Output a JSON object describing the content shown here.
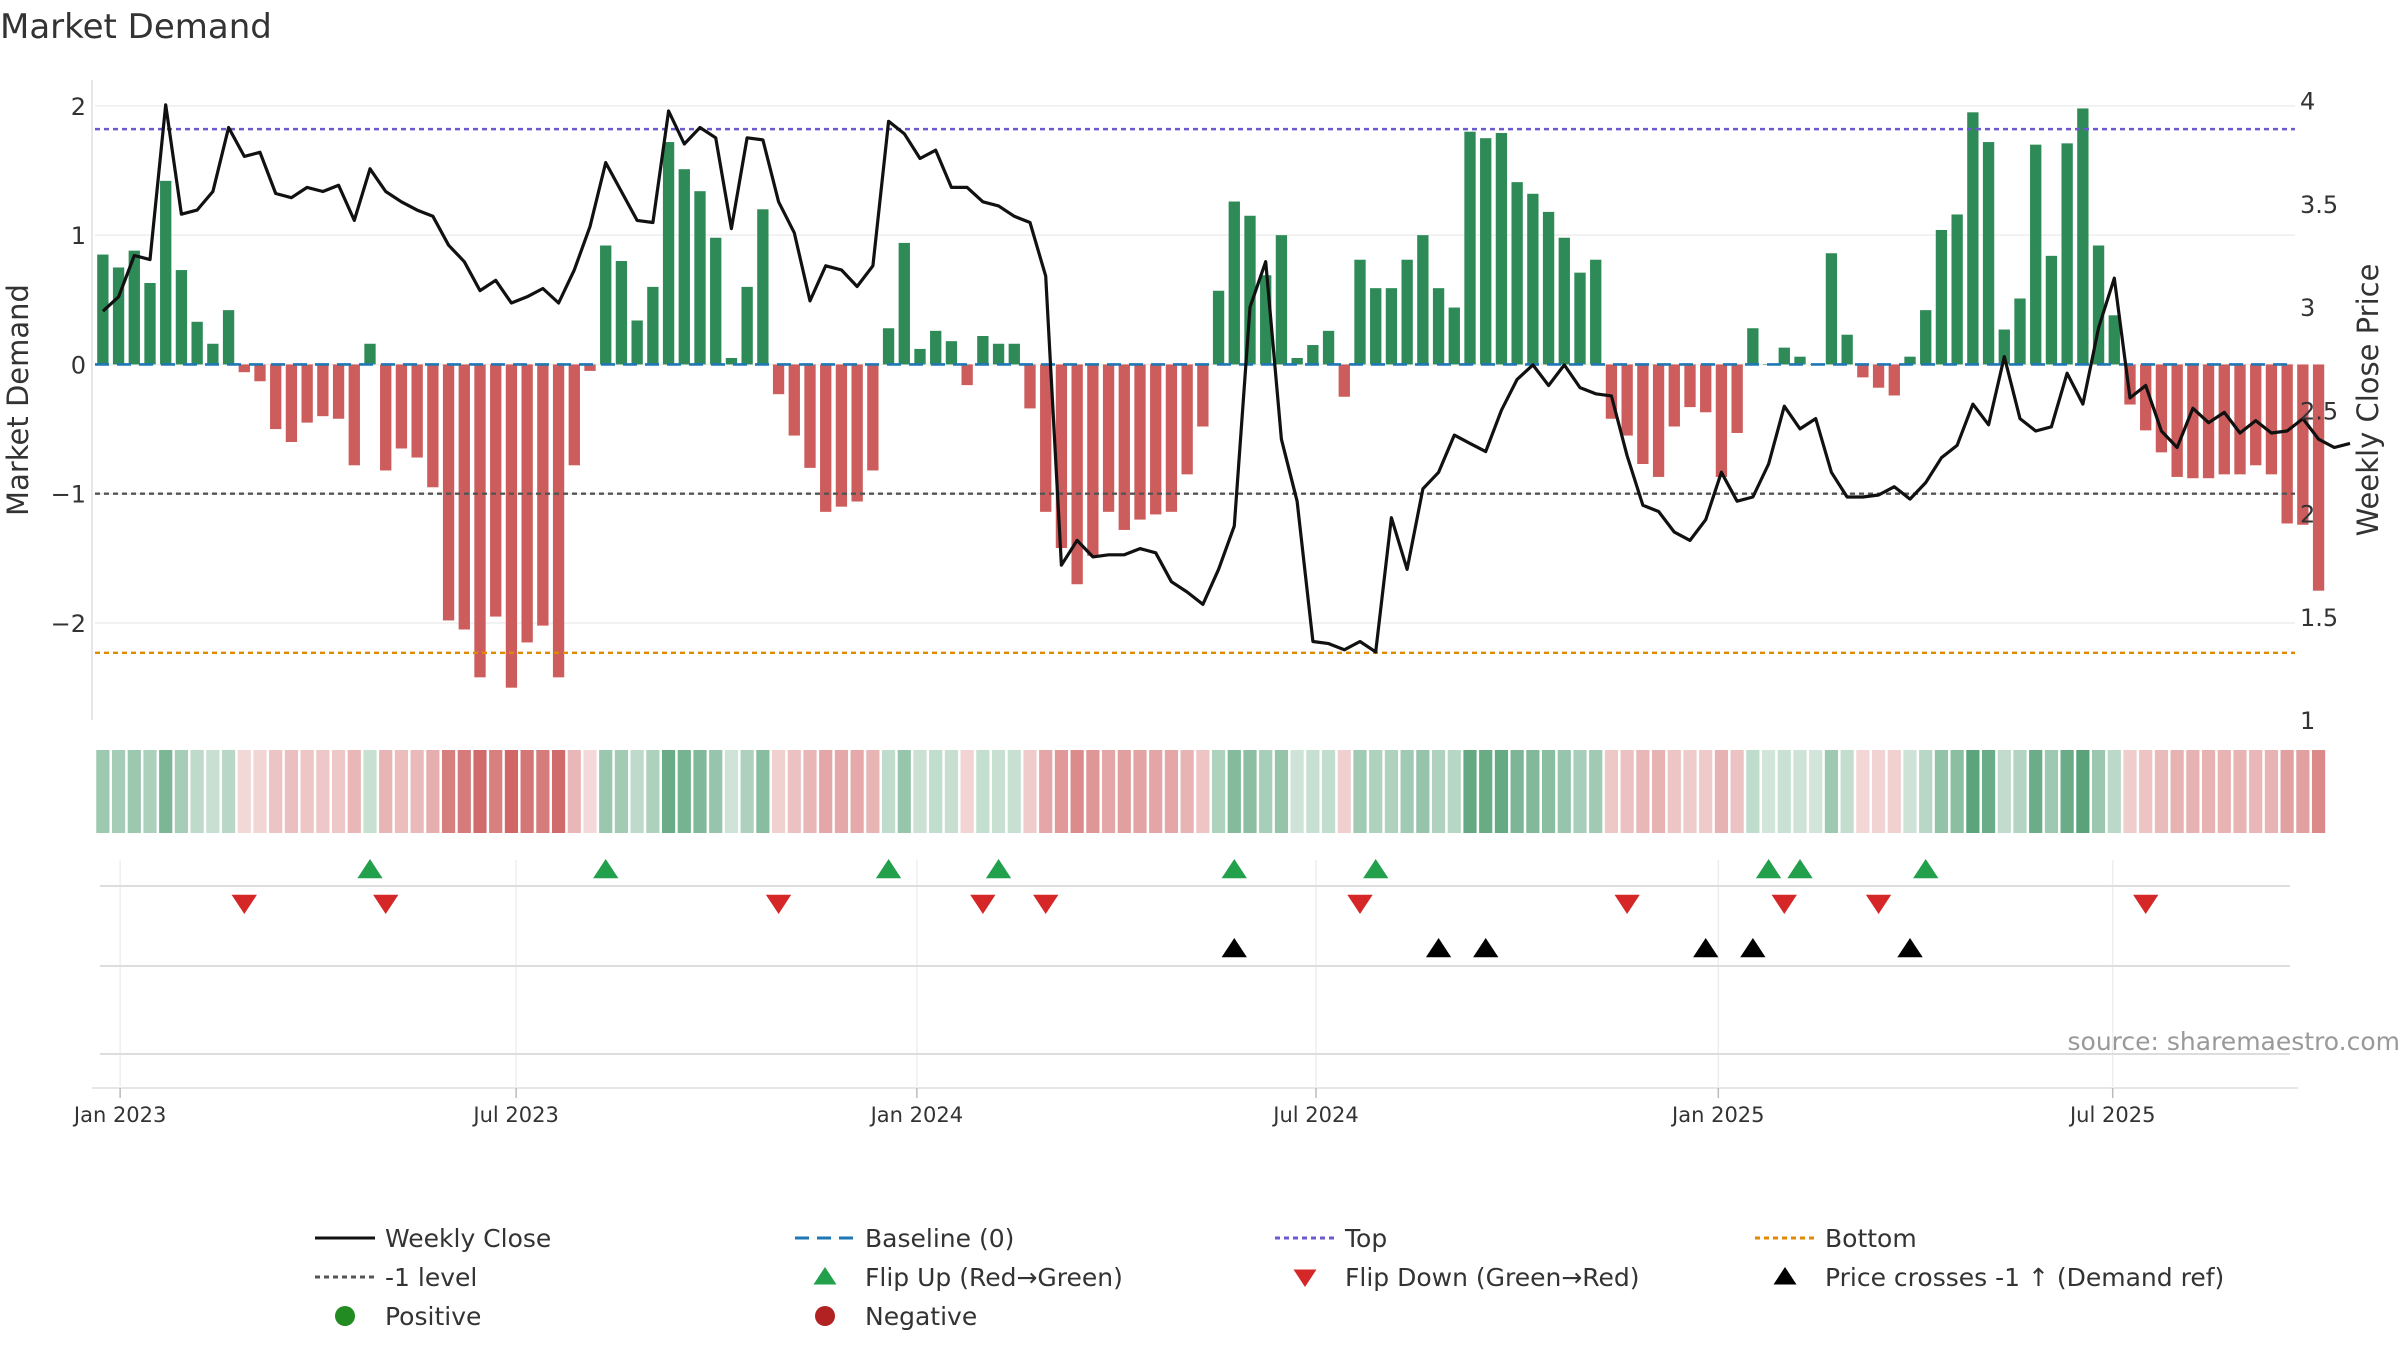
{
  "chart_data": {
    "type": "bar",
    "title": "Market Demand",
    "ylabel": "Market Demand",
    "y2label": "Weekly Close Price",
    "ylim": [
      -2.75,
      2.2
    ],
    "y2lim": [
      1.0,
      4.1
    ],
    "yticks": [
      -2,
      -1,
      0,
      1,
      2
    ],
    "ytick_labels": [
      "−2",
      "−1",
      "0",
      "1",
      "2"
    ],
    "y2ticks": [
      1,
      1.5,
      2,
      2.5,
      3,
      3.5,
      4
    ],
    "y2tick_labels": [
      "1",
      "1.5",
      "2",
      "2.5",
      "3",
      "3.5",
      "4"
    ],
    "x_start": "2022-12-19",
    "x_end": "2025-09-01",
    "weeks": 140,
    "xtick_weeks": [
      1.6,
      26.8,
      52.3,
      77.7,
      103.3,
      128.4
    ],
    "xtick_labels": [
      "Jan 2023",
      "Jul 2023",
      "Jan 2024",
      "Jul 2024",
      "Jan 2025",
      "Jul 2025"
    ],
    "levels": {
      "top": 1.82,
      "minus_one": -1.0,
      "bottom": -2.23,
      "baseline": 0
    },
    "demand": [
      0.85,
      0.75,
      0.88,
      0.63,
      1.42,
      0.73,
      0.33,
      0.16,
      0.42,
      -0.06,
      -0.13,
      -0.5,
      -0.6,
      -0.45,
      -0.4,
      -0.42,
      -0.78,
      0.16,
      -0.82,
      -0.65,
      -0.72,
      -0.95,
      -1.98,
      -2.05,
      -2.42,
      -1.95,
      -2.5,
      -2.15,
      -2.02,
      -2.42,
      -0.78,
      -0.05,
      0.92,
      0.8,
      0.34,
      0.6,
      1.72,
      1.51,
      1.34,
      0.98,
      0.05,
      0.6,
      1.2,
      -0.23,
      -0.55,
      -0.8,
      -1.14,
      -1.1,
      -1.06,
      -0.82,
      0.28,
      0.94,
      0.12,
      0.26,
      0.18,
      -0.16,
      0.22,
      0.16,
      0.16,
      -0.34,
      -1.14,
      -1.42,
      -1.7,
      -1.48,
      -1.14,
      -1.28,
      -1.2,
      -1.16,
      -1.14,
      -0.85,
      -0.48,
      0.57,
      1.26,
      1.15,
      0.69,
      1.0,
      0.05,
      0.15,
      0.26,
      -0.25,
      0.81,
      0.59,
      0.59,
      0.81,
      1.0,
      0.59,
      0.44,
      1.8,
      1.75,
      1.79,
      1.41,
      1.32,
      1.18,
      0.98,
      0.71,
      0.81,
      -0.42,
      -0.55,
      -0.77,
      -0.87,
      -0.48,
      -0.33,
      -0.37,
      -0.87,
      -0.53,
      0.28,
      0.0,
      0.13,
      0.06,
      0.0,
      0.86,
      0.23,
      -0.1,
      -0.18,
      -0.24,
      0.06,
      0.42,
      1.04,
      1.16,
      1.95,
      1.72,
      0.27,
      0.51,
      1.7,
      0.84,
      1.71,
      1.98,
      0.92,
      0.38,
      -0.31,
      -0.51,
      -0.68,
      -0.87,
      -0.88,
      -0.88,
      -0.85,
      -0.85,
      -0.78,
      -0.85,
      -1.23,
      -1.24,
      -1.75
    ],
    "price": [
      2.98,
      3.05,
      3.25,
      3.23,
      3.98,
      3.45,
      3.47,
      3.56,
      3.87,
      3.73,
      3.75,
      3.55,
      3.53,
      3.58,
      3.56,
      3.59,
      3.42,
      3.67,
      3.56,
      3.51,
      3.47,
      3.44,
      3.3,
      3.22,
      3.08,
      3.13,
      3.02,
      3.05,
      3.09,
      3.02,
      3.18,
      3.39,
      3.7,
      3.56,
      3.42,
      3.41,
      3.95,
      3.79,
      3.87,
      3.82,
      3.38,
      3.82,
      3.81,
      3.51,
      3.36,
      3.03,
      3.2,
      3.18,
      3.1,
      3.2,
      3.9,
      3.84,
      3.72,
      3.76,
      3.58,
      3.58,
      3.51,
      3.49,
      3.44,
      3.41,
      3.15,
      1.75,
      1.87,
      1.79,
      1.8,
      1.8,
      1.83,
      1.81,
      1.67,
      1.62,
      1.56,
      1.73,
      1.94,
      3.0,
      3.22,
      2.36,
      2.06,
      1.38,
      1.37,
      1.34,
      1.38,
      1.33,
      1.98,
      1.73,
      2.12,
      2.2,
      2.38,
      2.34,
      2.3,
      2.5,
      2.65,
      2.72,
      2.62,
      2.72,
      2.61,
      2.58,
      2.57,
      2.28,
      2.04,
      2.01,
      1.91,
      1.87,
      1.97,
      2.2,
      2.06,
      2.08,
      2.24,
      2.52,
      2.41,
      2.46,
      2.2,
      2.08,
      2.08,
      2.09,
      2.13,
      2.07,
      2.15,
      2.27,
      2.33,
      2.53,
      2.43,
      2.76,
      2.46,
      2.4,
      2.42,
      2.68,
      2.53,
      2.9,
      3.14,
      2.56,
      2.62,
      2.4,
      2.32,
      2.51,
      2.44,
      2.49,
      2.39,
      2.45,
      2.39,
      2.4,
      2.46,
      2.36,
      2.32,
      2.34
    ],
    "flip_up_weeks": [
      17,
      32,
      50,
      57,
      72,
      81,
      106,
      108,
      116
    ],
    "flip_down_weeks": [
      9,
      18,
      43,
      56,
      60,
      80,
      97,
      107,
      113,
      130
    ],
    "price_cross_weeks": [
      72,
      85,
      88,
      102,
      105,
      115
    ],
    "colors": {
      "positive_bar": "#2e8b57",
      "negative_bar": "#cd5c5c",
      "price_line": "#111111",
      "baseline": "#1f77b4",
      "top": "#6a5acd",
      "minus_one": "#555555",
      "bottom": "#e08a00",
      "flip_up": "#22a04b",
      "flip_down": "#d62728",
      "cross": "#000000",
      "positive_dot": "#228b22",
      "negative_dot": "#b22222"
    },
    "legend_position": "bottom",
    "legend": [
      {
        "label": "Weekly Close",
        "kind": "line",
        "color": "#111111"
      },
      {
        "label": "Baseline (0)",
        "kind": "dash",
        "color": "#1f77b4"
      },
      {
        "label": "Top",
        "kind": "dot",
        "color": "#6a5acd"
      },
      {
        "label": "Bottom",
        "kind": "dot",
        "color": "#e08a00"
      },
      {
        "label": "-1 level",
        "kind": "dot",
        "color": "#555555"
      },
      {
        "label": "Flip Up (Red→Green)",
        "kind": "tri-up",
        "color": "#22a04b"
      },
      {
        "label": "Flip Down (Green→Red)",
        "kind": "tri-down",
        "color": "#d62728"
      },
      {
        "label": "Price crosses -1 ↑ (Demand ref)",
        "kind": "tri-up",
        "color": "#000000"
      },
      {
        "label": "Positive",
        "kind": "circle",
        "color": "#228b22"
      },
      {
        "label": "Negative",
        "kind": "circle",
        "color": "#b22222"
      }
    ],
    "source": "source: sharemaestro.com"
  }
}
